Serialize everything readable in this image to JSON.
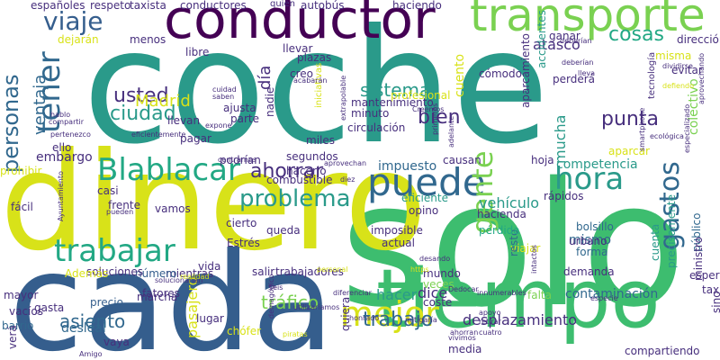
{
  "palette": {
    "green": "#3dbd6f",
    "teal": "#2a9a8a",
    "lightgreen": "#7ad151",
    "yellow": "#d8e219",
    "navy": "#355e8d",
    "blue": "#31688e",
    "purple": "#472f7d",
    "darkpurple": "#440154",
    "cyan": "#22a884"
  },
  "words": [
    {
      "text": "coche",
      "color": "teal",
      "vertical": false
    },
    {
      "text": "solo",
      "color": "green",
      "vertical": false
    },
    {
      "text": "dinero",
      "color": "yellow",
      "vertical": false
    },
    {
      "text": "cada",
      "color": "navy",
      "vertical": false
    },
    {
      "text": "tiempo",
      "color": "green",
      "vertical": false
    },
    {
      "text": "conductor",
      "color": "darkpurple",
      "vertical": false
    },
    {
      "text": "transporte",
      "color": "lightgreen",
      "vertical": false
    },
    {
      "text": "puede",
      "color": "blue",
      "vertical": false
    },
    {
      "text": "Blablacar",
      "color": "cyan",
      "vertical": false
    },
    {
      "text": "trabajar",
      "color": "cyan",
      "vertical": false
    },
    {
      "text": "mejor",
      "color": "yellow",
      "vertical": false
    },
    {
      "text": "gente",
      "color": "lightgreen",
      "vertical": true
    },
    {
      "text": "hora",
      "color": "teal",
      "vertical": false
    },
    {
      "text": "gastos",
      "color": "blue",
      "vertical": true
    },
    {
      "text": "tener",
      "color": "blue",
      "vertical": true
    },
    {
      "text": "personas",
      "color": "blue",
      "vertical": true
    },
    {
      "text": "viaje",
      "color": "navy",
      "vertical": false
    },
    {
      "text": "ahorrar",
      "color": "purple",
      "vertical": false
    },
    {
      "text": "problema",
      "color": "teal",
      "vertical": false
    },
    {
      "text": "cosas",
      "color": "cyan",
      "vertical": false
    },
    {
      "text": "usted",
      "color": "purple",
      "vertical": false
    },
    {
      "text": "ciudad",
      "color": "teal",
      "vertical": false
    },
    {
      "text": "Madrid",
      "color": "yellow",
      "vertical": false
    },
    {
      "text": "ventaja",
      "color": "blue",
      "vertical": true
    },
    {
      "text": "sistema",
      "color": "teal",
      "vertical": false
    },
    {
      "text": "bien",
      "color": "purple",
      "vertical": false
    },
    {
      "text": "punta",
      "color": "purple",
      "vertical": false
    },
    {
      "text": "trabajo",
      "color": "blue",
      "vertical": false
    },
    {
      "text": "tráfico",
      "color": "lightgreen",
      "vertical": false
    },
    {
      "text": "asiento",
      "color": "blue",
      "vertical": false
    },
    {
      "text": "atasco",
      "color": "purple",
      "vertical": false
    },
    {
      "text": "mucha",
      "color": "teal",
      "vertical": true
    },
    {
      "text": "dice",
      "color": "purple",
      "vertical": false
    },
    {
      "text": "desplazamiento",
      "color": "purple",
      "vertical": false
    },
    {
      "text": "contaminación",
      "color": "blue",
      "vertical": false
    },
    {
      "text": "vehículo",
      "color": "teal",
      "vertical": false
    },
    {
      "text": "hacer",
      "color": "teal",
      "vertical": false
    },
    {
      "text": "día",
      "color": "purple",
      "vertical": true
    },
    {
      "text": "embargo",
      "color": "purple",
      "vertical": false
    },
    {
      "text": "impuesto",
      "color": "blue",
      "vertical": false
    },
    {
      "text": "competencia",
      "color": "teal",
      "vertical": false
    },
    {
      "text": "desleal",
      "color": "blue",
      "vertical": false
    },
    {
      "text": "pasajero",
      "color": "yellow",
      "vertical": true
    },
    {
      "text": "cuento",
      "color": "yellow",
      "vertical": true
    },
    {
      "text": "mismo",
      "color": "blue",
      "vertical": false
    },
    {
      "text": "colectivo",
      "color": "lightgreen",
      "vertical": true
    },
    {
      "text": "llevan",
      "color": "purple",
      "vertical": false
    },
    {
      "text": "llevar",
      "color": "purple",
      "vertical": false
    },
    {
      "text": "plazas",
      "color": "purple",
      "vertical": false
    },
    {
      "text": "profesional",
      "color": "yellow",
      "vertical": false
    },
    {
      "text": "precio",
      "color": "navy",
      "vertical": false
    },
    {
      "text": "hacienda",
      "color": "purple",
      "vertical": false
    },
    {
      "text": "imposible",
      "color": "purple",
      "vertical": false
    },
    {
      "text": "bolsillo",
      "color": "blue",
      "vertical": false
    },
    {
      "text": "forma",
      "color": "blue",
      "vertical": false
    },
    {
      "text": "cuenta",
      "color": "teal",
      "vertical": true
    },
    {
      "text": "público",
      "color": "blue",
      "vertical": true
    },
    {
      "text": "precisamente",
      "color": "teal",
      "vertical": true
    },
    {
      "text": "gasta",
      "color": "purple",
      "vertical": false
    },
    {
      "text": "fácil",
      "color": "purple",
      "vertical": false
    },
    {
      "text": "mayor",
      "color": "purple",
      "vertical": false
    },
    {
      "text": "vacíos",
      "color": "purple",
      "vertical": false
    },
    {
      "text": "barrio",
      "color": "blue",
      "vertical": false
    },
    {
      "text": "ello",
      "color": "purple",
      "vertical": false
    },
    {
      "text": "viajar",
      "color": "yellow",
      "vertical": false
    },
    {
      "text": "mundo",
      "color": "purple",
      "vertical": false
    },
    {
      "text": "resto",
      "color": "blue",
      "vertical": true
    },
    {
      "text": "lugar",
      "color": "purple",
      "vertical": false
    },
    {
      "text": "vaya",
      "color": "purple",
      "vertical": false
    },
    {
      "text": "salir",
      "color": "purple",
      "vertical": false
    },
    {
      "text": "vida",
      "color": "purple",
      "vertical": false
    },
    {
      "text": "queda",
      "color": "purple",
      "vertical": false
    },
    {
      "text": "cierto",
      "color": "purple",
      "vertical": false
    },
    {
      "text": "mientras",
      "color": "purple",
      "vertical": false
    },
    {
      "text": "número",
      "color": "navy",
      "vertical": false
    },
    {
      "text": "trabajadores",
      "color": "purple",
      "vertical": false
    },
    {
      "text": "segundos",
      "color": "purple",
      "vertical": false
    },
    {
      "text": "hacerlo",
      "color": "purple",
      "vertical": false
    },
    {
      "text": "podrían",
      "color": "purple",
      "vertical": false
    },
    {
      "text": "combustible",
      "color": "purple",
      "vertical": false
    },
    {
      "text": "eficiente",
      "color": "teal",
      "vertical": false
    },
    {
      "text": "urbano",
      "color": "purple",
      "vertical": false
    },
    {
      "text": "hoja",
      "color": "purple",
      "vertical": false
    },
    {
      "text": "veces",
      "color": "lightgreen",
      "vertical": false
    },
    {
      "text": "demanda",
      "color": "purple",
      "vertical": false
    },
    {
      "text": "pérdida",
      "color": "cyan",
      "vertical": false
    },
    {
      "text": "espera",
      "color": "purple",
      "vertical": false
    },
    {
      "text": "sino",
      "color": "purple",
      "vertical": true
    },
    {
      "text": "taxi",
      "color": "purple",
      "vertical": false
    },
    {
      "text": "ministro",
      "color": "purple",
      "vertical": true
    },
    {
      "text": "compartiendo",
      "color": "purple",
      "vertical": false
    },
    {
      "text": "falta",
      "color": "lightgreen",
      "vertical": false
    },
    {
      "text": "media",
      "color": "purple",
      "vertical": false
    },
    {
      "text": "coste",
      "color": "purple",
      "vertical": false
    },
    {
      "text": "quiera",
      "color": "purple",
      "vertical": true
    },
    {
      "text": "chófer",
      "color": "yellow",
      "vertical": false
    },
    {
      "text": "Estrés",
      "color": "purple",
      "vertical": false
    },
    {
      "text": "pagar",
      "color": "purple",
      "vertical": false
    },
    {
      "text": "parte",
      "color": "purple",
      "vertical": false
    },
    {
      "text": "ajusta",
      "color": "purple",
      "vertical": false
    },
    {
      "text": "minuto",
      "color": "purple",
      "vertical": false
    },
    {
      "text": "circulación",
      "color": "purple",
      "vertical": false
    },
    {
      "text": "mantenimiento",
      "color": "purple",
      "vertical": false
    },
    {
      "text": "cómodo",
      "color": "purple",
      "vertical": false
    },
    {
      "text": "perderá",
      "color": "purple",
      "vertical": false
    },
    {
      "text": "aparcamiento",
      "color": "purple",
      "vertical": true
    },
    {
      "text": "accidentes",
      "color": "teal",
      "vertical": true
    },
    {
      "text": "dirección",
      "color": "purple",
      "vertical": false
    },
    {
      "text": "aparcar",
      "color": "yellow",
      "vertical": false
    },
    {
      "text": "misma",
      "color": "yellow",
      "vertical": false
    },
    {
      "text": "evitar",
      "color": "purple",
      "vertical": false
    },
    {
      "text": "ganar",
      "color": "purple",
      "vertical": false
    },
    {
      "text": "taxista",
      "color": "purple",
      "vertical": false
    },
    {
      "text": "conductores",
      "color": "purple",
      "vertical": false
    },
    {
      "text": "autobús",
      "color": "purple",
      "vertical": false
    },
    {
      "text": "haciendo",
      "color": "purple",
      "vertical": false
    },
    {
      "text": "respeto",
      "color": "purple",
      "vertical": false
    },
    {
      "text": "españoles",
      "color": "purple",
      "vertical": false
    },
    {
      "text": "dejarán",
      "color": "yellow",
      "vertical": false
    },
    {
      "text": "menos",
      "color": "purple",
      "vertical": false
    },
    {
      "text": "libre",
      "color": "purple",
      "vertical": false
    },
    {
      "text": "nadie",
      "color": "purple",
      "vertical": true
    },
    {
      "text": "creo",
      "color": "purple",
      "vertical": false
    },
    {
      "text": "miles",
      "color": "purple",
      "vertical": false
    },
    {
      "text": "causan",
      "color": "purple",
      "vertical": false
    },
    {
      "text": "rápidos",
      "color": "purple",
      "vertical": false
    },
    {
      "text": "opino",
      "color": "purple",
      "vertical": false
    },
    {
      "text": "actual",
      "color": "purple",
      "vertical": false
    },
    {
      "text": "casi",
      "color": "purple",
      "vertical": false
    },
    {
      "text": "frente",
      "color": "purple",
      "vertical": false
    },
    {
      "text": "vamos",
      "color": "purple",
      "vertical": false
    },
    {
      "text": "fatores",
      "color": "purple",
      "vertical": false
    },
    {
      "text": "soluciones",
      "color": "purple",
      "vertical": false
    },
    {
      "text": "marcha",
      "color": "purple",
      "vertical": false
    },
    {
      "text": "prohibir",
      "color": "yellow",
      "vertical": false
    },
    {
      "text": "Además",
      "color": "yellow",
      "vertical": false
    },
    {
      "text": "verá",
      "color": "purple",
      "vertical": true
    },
    {
      "text": "cuidad",
      "color": "purple",
      "vertical": false
    },
    {
      "text": "saben",
      "color": "purple",
      "vertical": false
    },
    {
      "text": "hablo",
      "color": "purple",
      "vertical": false
    },
    {
      "text": "compartir",
      "color": "purple",
      "vertical": false
    },
    {
      "text": "pertenezco",
      "color": "purple",
      "vertical": false
    },
    {
      "text": "tecnología",
      "color": "purple",
      "vertical": true
    },
    {
      "text": "especializado",
      "color": "purple",
      "vertical": true
    },
    {
      "text": "aprovechando",
      "color": "purple",
      "vertical": true
    },
    {
      "text": "dividirse",
      "color": "purple",
      "vertical": false
    },
    {
      "text": "defiendo",
      "color": "yellow",
      "vertical": false
    },
    {
      "text": "lleva",
      "color": "purple",
      "vertical": false
    },
    {
      "text": "deberían",
      "color": "purple",
      "vertical": false
    },
    {
      "text": "ecológica",
      "color": "purple",
      "vertical": false
    },
    {
      "text": "iniciativas",
      "color": "yellow",
      "vertical": true
    },
    {
      "text": "extrapolable",
      "color": "purple",
      "vertical": true
    },
    {
      "text": "eficientemente",
      "color": "purple",
      "vertical": false
    },
    {
      "text": "expone",
      "color": "purple",
      "vertical": false
    },
    {
      "text": "centrarnos",
      "color": "purple",
      "vertical": false
    },
    {
      "text": "Creemos",
      "color": "purple",
      "vertical": false
    },
    {
      "text": "acabarán",
      "color": "purple",
      "vertical": false
    },
    {
      "text": "aprovechan",
      "color": "purple",
      "vertical": false
    },
    {
      "text": "Seis",
      "color": "purple",
      "vertical": false
    },
    {
      "text": "solucionarían",
      "color": "purple",
      "vertical": false
    },
    {
      "text": "personal",
      "color": "yellow",
      "vertical": false
    },
    {
      "text": "https",
      "color": "yellow",
      "vertical": false
    },
    {
      "text": "pueden",
      "color": "purple",
      "vertical": false
    },
    {
      "text": "apoyo",
      "color": "purple",
      "vertical": false
    },
    {
      "text": "especie",
      "color": "purple",
      "vertical": false
    },
    {
      "text": "retirar",
      "color": "purple",
      "vertical": false
    },
    {
      "text": "honrado",
      "color": "purple",
      "vertical": false
    },
    {
      "text": "mitigaría",
      "color": "purple",
      "vertical": false
    },
    {
      "text": "utilizaríamos",
      "color": "purple",
      "vertical": false
    },
    {
      "text": "Dedocar",
      "color": "purple",
      "vertical": false
    },
    {
      "text": "desando",
      "color": "purple",
      "vertical": false
    },
    {
      "text": "innumerables",
      "color": "purple",
      "vertical": false
    },
    {
      "text": "diferenciar",
      "color": "purple",
      "vertical": false
    },
    {
      "text": "Ayuntamiento",
      "color": "purple",
      "vertical": true
    },
    {
      "text": "demagógico",
      "color": "purple",
      "vertical": true
    },
    {
      "text": "piratas",
      "color": "yellow",
      "vertical": false
    },
    {
      "text": "Amigo",
      "color": "purple",
      "vertical": false
    },
    {
      "text": "cuatro",
      "color": "purple",
      "vertical": false
    },
    {
      "text": "vivimos",
      "color": "purple",
      "vertical": false
    },
    {
      "text": "quién",
      "color": "purple",
      "vertical": false
    },
    {
      "text": "adelante",
      "color": "purple",
      "vertical": true
    },
    {
      "text": "intactos",
      "color": "purple",
      "vertical": true
    },
    {
      "text": "smartphone",
      "color": "purple",
      "vertical": true
    },
    {
      "text": "diez",
      "color": "purple",
      "vertical": false
    },
    {
      "text": "primeros",
      "color": "purple",
      "vertical": true
    },
    {
      "text": "ahorran",
      "color": "purple",
      "vertical": false
    },
    {
      "text": "realidad",
      "color": "yellow",
      "vertical": false
    },
    {
      "text": "deberían",
      "color": "purple",
      "vertical": false
    }
  ]
}
